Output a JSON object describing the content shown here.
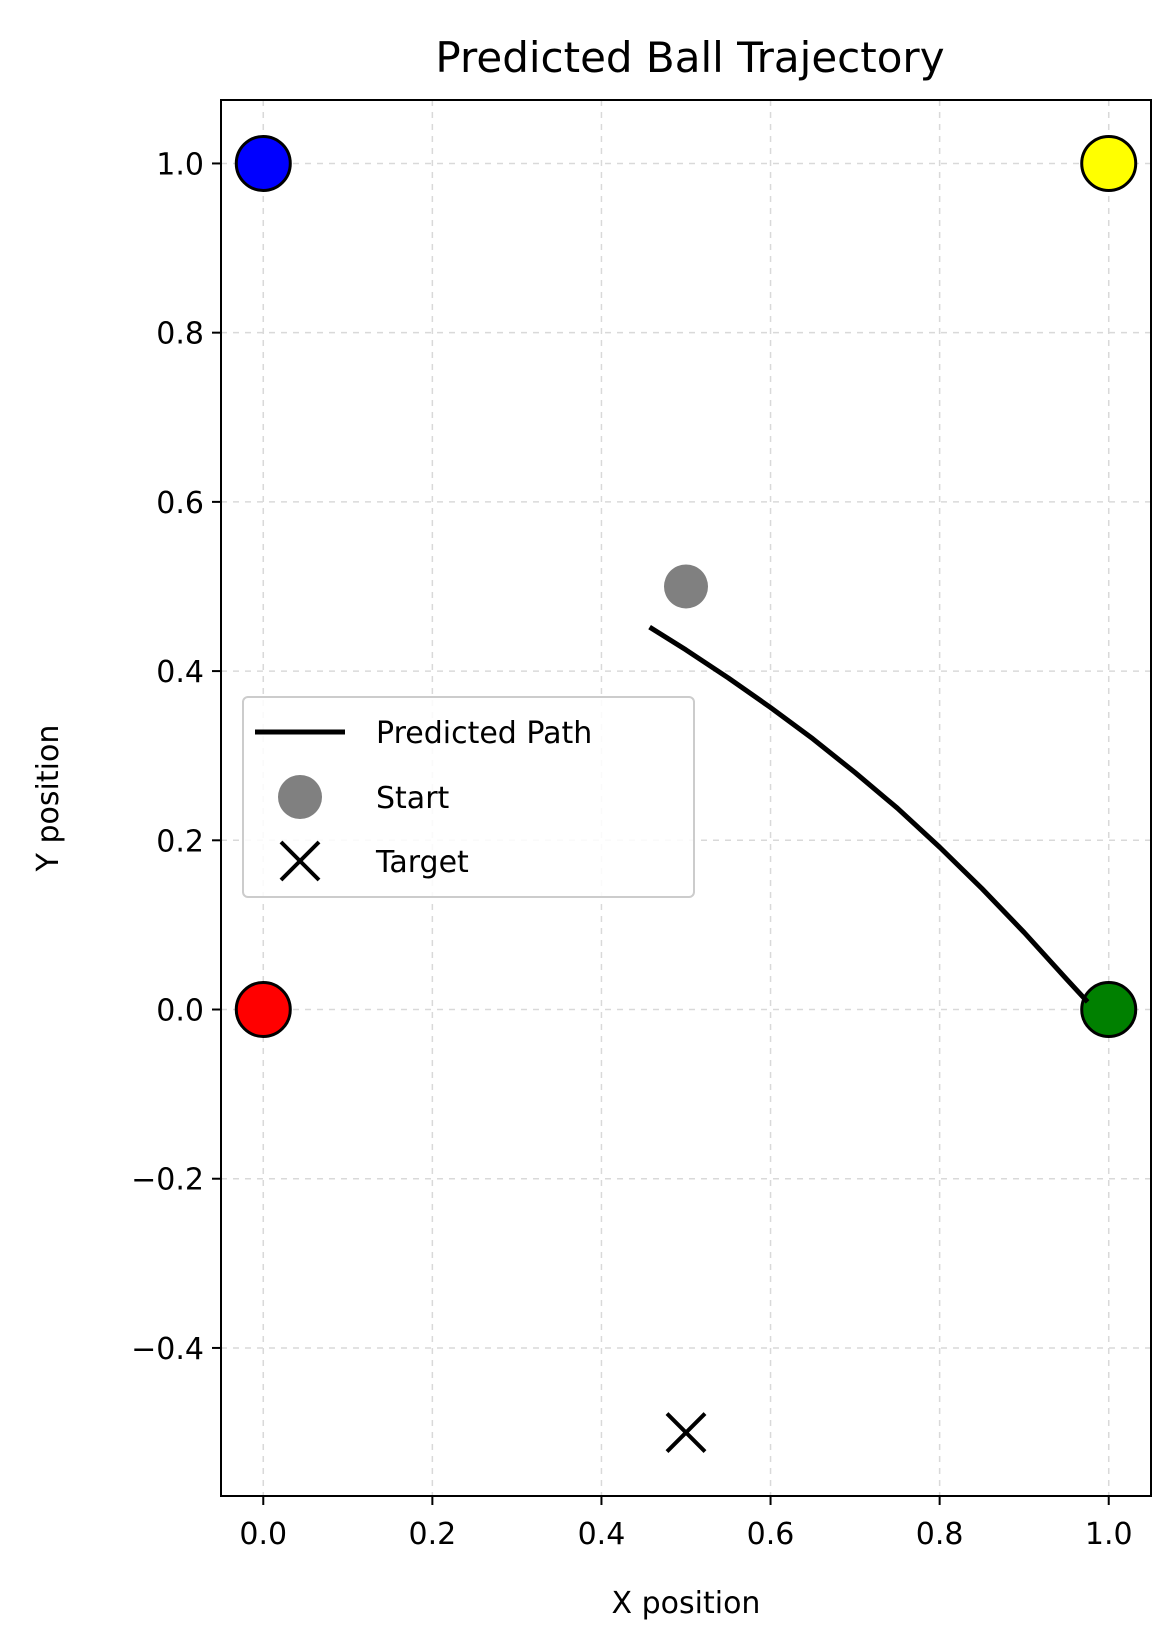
{
  "chart_data": {
    "type": "scatter",
    "title": "Predicted Ball Trajectory",
    "xlabel": "X position",
    "ylabel": "Y position",
    "xlim": [
      -0.05,
      1.05
    ],
    "ylim": [
      -0.575,
      1.075
    ],
    "xticks": [
      0.0,
      0.2,
      0.4,
      0.6,
      0.8,
      1.0
    ],
    "xtick_labels": [
      "0.0",
      "0.2",
      "0.4",
      "0.6",
      "0.8",
      "1.0"
    ],
    "yticks": [
      -0.4,
      -0.2,
      0.0,
      0.2,
      0.4,
      0.6,
      0.8,
      1.0
    ],
    "ytick_labels": [
      "−0.4",
      "−0.2",
      "0.0",
      "0.2",
      "0.4",
      "0.6",
      "0.8",
      "1.0"
    ],
    "grid": true,
    "legend_position": "center-left",
    "corner_points": [
      {
        "x": 0.0,
        "y": 1.0,
        "color": "#0000ff"
      },
      {
        "x": 1.0,
        "y": 1.0,
        "color": "#ffff00"
      },
      {
        "x": 0.0,
        "y": 0.0,
        "color": "#ff0000"
      },
      {
        "x": 1.0,
        "y": 0.0,
        "color": "#008000"
      }
    ],
    "series": [
      {
        "name": "Predicted Path",
        "type": "line",
        "color": "#000000",
        "x": [
          0.457,
          0.5,
          0.55,
          0.6,
          0.65,
          0.7,
          0.75,
          0.8,
          0.85,
          0.9,
          0.95,
          0.975
        ],
        "y": [
          0.452,
          0.425,
          0.392,
          0.357,
          0.32,
          0.28,
          0.238,
          0.192,
          0.143,
          0.091,
          0.036,
          0.009
        ]
      },
      {
        "name": "Start",
        "type": "scatter",
        "marker": "circle",
        "color": "#808080",
        "x": [
          0.5
        ],
        "y": [
          0.5
        ]
      },
      {
        "name": "Target",
        "type": "scatter",
        "marker": "x",
        "color": "#000000",
        "x": [
          0.5
        ],
        "y": [
          -0.5
        ]
      }
    ]
  }
}
